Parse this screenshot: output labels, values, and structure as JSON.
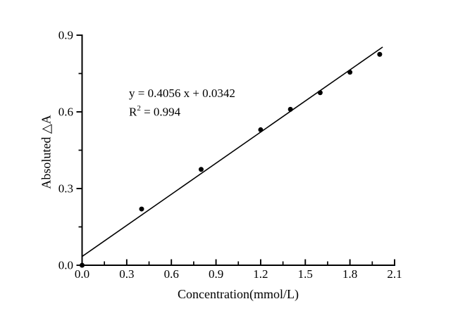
{
  "chart_data": {
    "type": "scatter",
    "title": "",
    "xlabel": "Concentration(mmol/L)",
    "ylabel": "Absoluted △A",
    "xlim": [
      0.0,
      2.1
    ],
    "ylim": [
      0.0,
      0.9
    ],
    "x_tick_labels": [
      "0.0",
      "0.3",
      "0.6",
      "0.9",
      "1.2",
      "1.5",
      "1.8",
      "2.1"
    ],
    "y_tick_labels": [
      "0.0",
      "0.3",
      "0.6",
      "0.9"
    ],
    "minor_tick_interval": 0.15,
    "grid": false,
    "legend": "none",
    "points": [
      {
        "x": 0.0,
        "y": 0.0
      },
      {
        "x": 0.4,
        "y": 0.22
      },
      {
        "x": 0.8,
        "y": 0.375
      },
      {
        "x": 1.2,
        "y": 0.53
      },
      {
        "x": 1.4,
        "y": 0.61
      },
      {
        "x": 1.6,
        "y": 0.675
      },
      {
        "x": 1.8,
        "y": 0.755
      },
      {
        "x": 2.0,
        "y": 0.825
      }
    ],
    "fit_line": {
      "slope": 0.4056,
      "intercept": 0.0342,
      "x_start": 0.0,
      "x_end": 2.02
    },
    "annotation": {
      "equation": "y = 0.4056 x + 0.0342",
      "r_base": "R",
      "r_sup": "2",
      "r_rest": " = 0.994"
    },
    "colors": {
      "axis": "#000000",
      "marker": "#000000",
      "line": "#000000",
      "text": "#000000",
      "background": "#ffffff"
    }
  }
}
